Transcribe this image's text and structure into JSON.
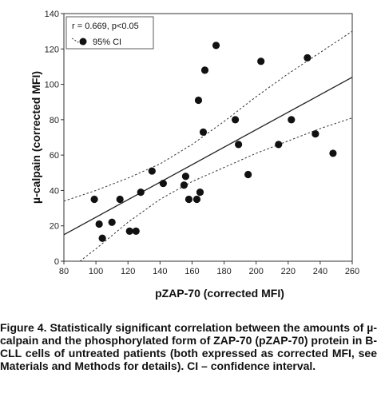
{
  "chart_data": {
    "type": "scatter",
    "xlabel": "pZAP-70 (corrected MFI)",
    "ylabel": "µ-calpain (corrected MFI)",
    "xlim": [
      80,
      260
    ],
    "ylim": [
      0,
      140
    ],
    "xticks": [
      80,
      100,
      120,
      140,
      160,
      180,
      200,
      220,
      240,
      260
    ],
    "yticks": [
      0,
      20,
      40,
      60,
      80,
      100,
      120,
      140
    ],
    "grid": false,
    "legend_placement": "top-left",
    "legend": {
      "stat_label": "r = 0.669, p<0.05",
      "ci_label": "95% CI"
    },
    "points": [
      {
        "x": 99,
        "y": 35
      },
      {
        "x": 102,
        "y": 21
      },
      {
        "x": 104,
        "y": 13
      },
      {
        "x": 110,
        "y": 22
      },
      {
        "x": 115,
        "y": 35
      },
      {
        "x": 121,
        "y": 17
      },
      {
        "x": 125,
        "y": 17
      },
      {
        "x": 128,
        "y": 39
      },
      {
        "x": 135,
        "y": 51
      },
      {
        "x": 142,
        "y": 44
      },
      {
        "x": 155,
        "y": 43
      },
      {
        "x": 156,
        "y": 48
      },
      {
        "x": 158,
        "y": 35
      },
      {
        "x": 163,
        "y": 35
      },
      {
        "x": 164,
        "y": 91
      },
      {
        "x": 165,
        "y": 39
      },
      {
        "x": 167,
        "y": 73
      },
      {
        "x": 168,
        "y": 108
      },
      {
        "x": 175,
        "y": 122
      },
      {
        "x": 187,
        "y": 80
      },
      {
        "x": 189,
        "y": 66
      },
      {
        "x": 195,
        "y": 49
      },
      {
        "x": 203,
        "y": 113
      },
      {
        "x": 214,
        "y": 66
      },
      {
        "x": 222,
        "y": 80
      },
      {
        "x": 232,
        "y": 115
      },
      {
        "x": 237,
        "y": 72
      },
      {
        "x": 248,
        "y": 61
      }
    ],
    "regression_line": {
      "x": [
        80,
        260
      ],
      "y": [
        15,
        104
      ]
    },
    "ci_upper": {
      "x": [
        80,
        100,
        120,
        140,
        160,
        180,
        200,
        220,
        240,
        260
      ],
      "y": [
        34,
        40,
        47,
        55,
        66,
        79,
        93,
        106,
        118,
        130
      ]
    },
    "ci_lower": {
      "x": [
        90,
        100,
        120,
        140,
        160,
        180,
        200,
        220,
        240,
        260
      ],
      "y": [
        0,
        7,
        22,
        35,
        45,
        53,
        61,
        68,
        75,
        81
      ]
    }
  },
  "caption": "Figure 4. Statistically significant correlation between the amounts of µ-calpain and the phosphorylated form of ZAP-70 (pZAP-70) protein in B-CLL cells of untreated patients (both expressed as corrected MFI, see Materials and Methods for details). CI – confidence interval."
}
